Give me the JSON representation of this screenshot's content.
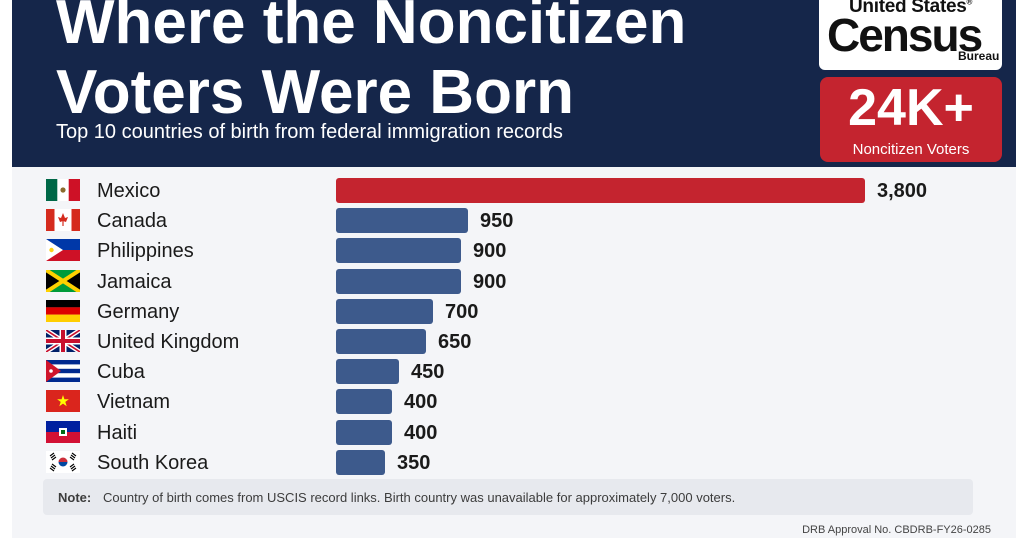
{
  "title_line1": "Where the Noncitizen",
  "title_line2": "Voters Were Born",
  "subtitle": "Top 10 countries of birth from federal immigration records",
  "logo": {
    "line1": "United States",
    "line2": "Census",
    "line3": "Bureau",
    "mark": "®"
  },
  "badge": {
    "value": "24K+",
    "label": "Noncitizen Voters"
  },
  "note_label": "Note:",
  "note_text": "Country of birth comes from USCIS record links. Birth country was unavailable for approximately 7,000 voters.",
  "approval": "DRB Approval No. CBDRB-FY26-0285",
  "colors": {
    "header": "#15264a",
    "highlight_bar": "#c4242f",
    "bar": "#3d5a8c"
  },
  "chart_data": {
    "type": "bar",
    "orientation": "horizontal",
    "title": "Where the Noncitizen Voters Were Born",
    "subtitle": "Top 10 countries of birth from federal immigration records",
    "categories": [
      "Mexico",
      "Canada",
      "Philippines",
      "Jamaica",
      "Germany",
      "United Kingdom",
      "Cuba",
      "Vietnam",
      "Haiti",
      "South Korea"
    ],
    "values": [
      3800,
      950,
      900,
      900,
      700,
      650,
      450,
      400,
      400,
      350
    ],
    "value_labels": [
      "3,800",
      "950",
      "900",
      "900",
      "700",
      "650",
      "450",
      "400",
      "400",
      "350"
    ],
    "flags": [
      "mexico-flag-icon",
      "canada-flag-icon",
      "philippines-flag-icon",
      "jamaica-flag-icon",
      "germany-flag-icon",
      "uk-flag-icon",
      "cuba-flag-icon",
      "vietnam-flag-icon",
      "haiti-flag-icon",
      "south-korea-flag-icon"
    ],
    "xlim": [
      0,
      3800
    ],
    "grid": false,
    "legend": "none"
  }
}
